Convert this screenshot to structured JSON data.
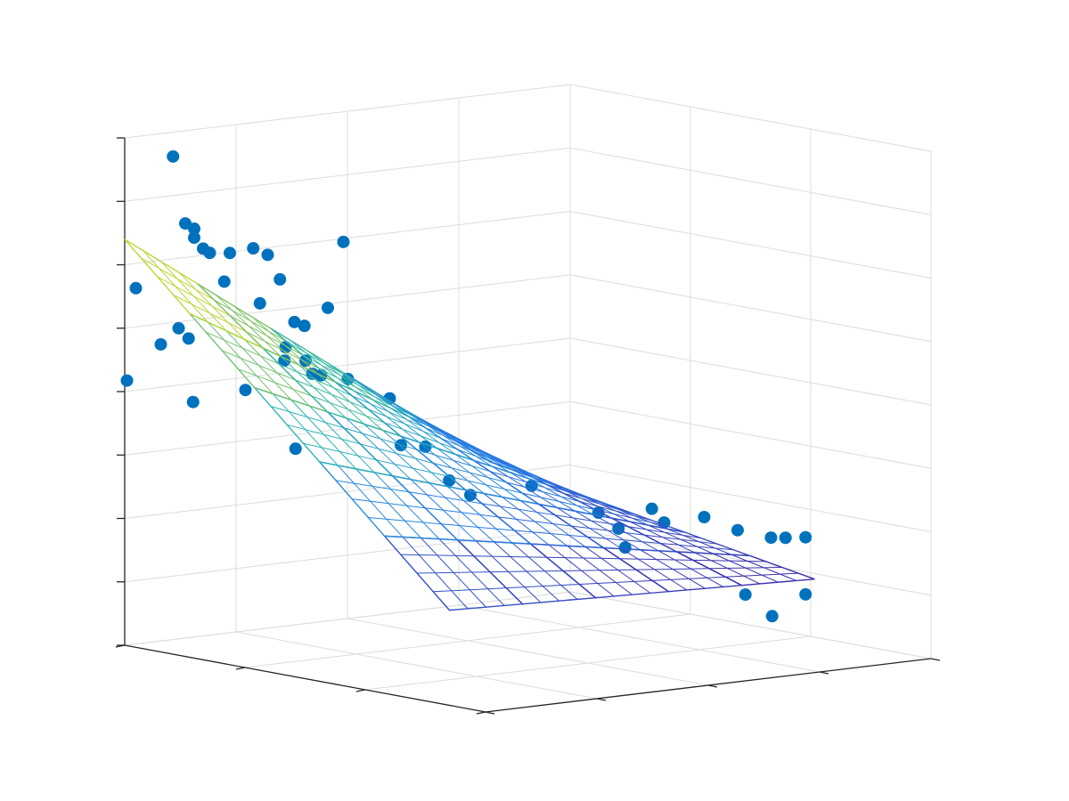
{
  "chart_data": {
    "type": "scatter3d",
    "color": "#0072bd",
    "grid": true,
    "xlim": [
      0,
      3
    ],
    "ylim": [
      0,
      4
    ],
    "zlim": [
      0,
      8
    ],
    "xticks": [
      0,
      1,
      2,
      3
    ],
    "yticks": [
      0,
      1,
      2,
      3,
      4
    ],
    "zticks": [
      0,
      1,
      2,
      3,
      4,
      5,
      6,
      7,
      8
    ],
    "x": [
      2.7,
      2.7,
      2.7,
      2.7,
      2.7,
      2.7,
      2.7,
      2.7,
      2.7,
      2.7,
      3,
      2.7,
      2.7,
      2.7,
      2.7,
      2.7,
      2.7,
      2.7,
      2.7,
      2.7,
      2.7,
      2.7,
      2.7,
      2.7,
      2.7,
      2.7,
      3,
      2.7,
      2.7,
      1.5,
      2.7,
      1.5,
      1.5,
      0.45,
      0.45,
      0.45,
      0.45,
      0.45,
      0.45,
      0.45,
      0.45,
      0.45,
      0.45,
      0.45,
      0.45,
      0.45,
      0.45,
      0.45,
      0.45
    ],
    "y": [
      0.11,
      0.22,
      0.3,
      0.3,
      0.38,
      0.44,
      0.62,
      0.83,
      0.96,
      1.64,
      0.1,
      0.57,
      1.07,
      0.89,
      1.5,
      1.2,
      1.29,
      0.16,
      0.25,
      0,
      1.12,
      1.11,
      1.3,
      1.36,
      1.44,
      1.68,
      0.02,
      0.76,
      0.29,
      0.76,
      1.21,
      0.86,
      1.08,
      0.16,
      0.9,
      0.35,
      1.5,
      1.98,
      2.45,
      2.09,
      1.68,
      2.75,
      3.05,
      3.18,
      3.36,
      1.74,
      2.82,
      3.36,
      3.06
    ],
    "z": [
      7.79,
      6.71,
      6.61,
      6.47,
      6.28,
      6.2,
      6.16,
      6.19,
      6.06,
      6.12,
      5.61,
      5.72,
      5.65,
      5.31,
      5.11,
      4.95,
      4.87,
      5.07,
      4.89,
      4.85,
      4.57,
      4.36,
      4.32,
      4.1,
      4.06,
      3.95,
      4.17,
      3.97,
      3.88,
      4.26,
      2.95,
      3.5,
      3.43,
      3.46,
      3.22,
      3.19,
      2.67,
      2.63,
      2.4,
      2.39,
      2.38,
      2.13,
      1.95,
      1.92,
      1.89,
      2.07,
      1.1,
      0.99,
      0.71
    ],
    "surface": {
      "x": [
        0.3,
        0.84,
        1.38,
        1.92,
        2.46,
        3
      ],
      "y": [
        0,
        0.656,
        1.312,
        1.968,
        2.624,
        3.28
      ],
      "z": [
        [
          1.5,
          1.46,
          1.42,
          1.38,
          1.34,
          1.3
        ],
        [
          2.48,
          2.28,
          2.08,
          1.88,
          1.68,
          1.48
        ],
        [
          3.46,
          3.1,
          2.74,
          2.38,
          2.02,
          1.66
        ],
        [
          4.44,
          3.92,
          3.4,
          2.88,
          2.36,
          1.84
        ],
        [
          5.42,
          4.74,
          4.06,
          3.38,
          2.7,
          2.02
        ],
        [
          6.4,
          5.56,
          4.72,
          3.88,
          3.04,
          2.2
        ]
      ]
    }
  }
}
